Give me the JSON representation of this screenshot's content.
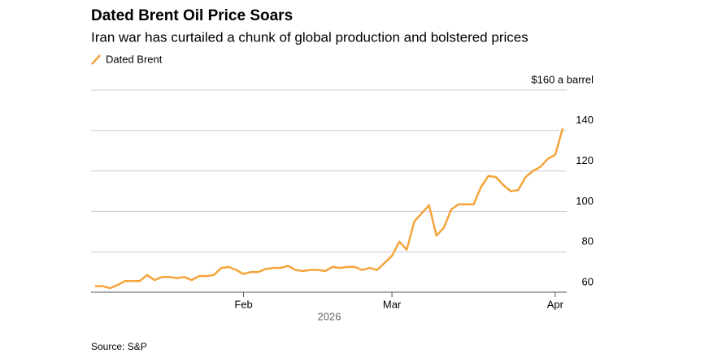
{
  "chart_data": {
    "type": "line",
    "title": "Dated Brent Oil Price Soars",
    "subtitle": "Iran war has curtailed a chunk of global production and bolstered prices",
    "x_label": "2026",
    "source": "Source: S&P",
    "categories": [
      null,
      null,
      null,
      null,
      null,
      null,
      null,
      null,
      null,
      null,
      null,
      null,
      null,
      null,
      null,
      null,
      null,
      null,
      null,
      null,
      "Feb",
      null,
      null,
      null,
      null,
      null,
      null,
      null,
      null,
      null,
      null,
      null,
      null,
      null,
      null,
      null,
      null,
      null,
      null,
      null,
      "Mar",
      null,
      null,
      null,
      null,
      null,
      null,
      null,
      null,
      null,
      null,
      null,
      null,
      null,
      null,
      null,
      null,
      null,
      null,
      null,
      null,
      null,
      "Apr",
      null
    ],
    "series": [
      {
        "name": "Dated Brent",
        "color": "#f4a43a",
        "values": [
          63,
          63,
          62,
          63.5,
          65.5,
          65.5,
          65.5,
          68.5,
          66,
          67.5,
          67.5,
          67,
          67.5,
          66,
          68,
          68,
          68.5,
          72,
          72.5,
          71,
          69,
          70,
          70,
          71.5,
          72,
          72,
          73,
          71,
          70.5,
          71,
          71,
          70.5,
          72.5,
          72,
          72.5,
          72.5,
          71,
          72,
          71,
          74.5,
          78,
          85,
          81,
          95,
          99,
          103,
          88,
          92,
          101,
          103.5,
          103.5,
          103.5,
          112,
          117.5,
          117,
          113,
          110,
          110.5,
          117,
          120,
          122,
          126,
          128,
          141
        ]
      }
    ],
    "ylim": [
      60,
      160
    ],
    "yticks": [
      60,
      80,
      100,
      120,
      140,
      {
        "value": 160,
        "label": "$160 a barrel"
      }
    ],
    "grid": true
  }
}
